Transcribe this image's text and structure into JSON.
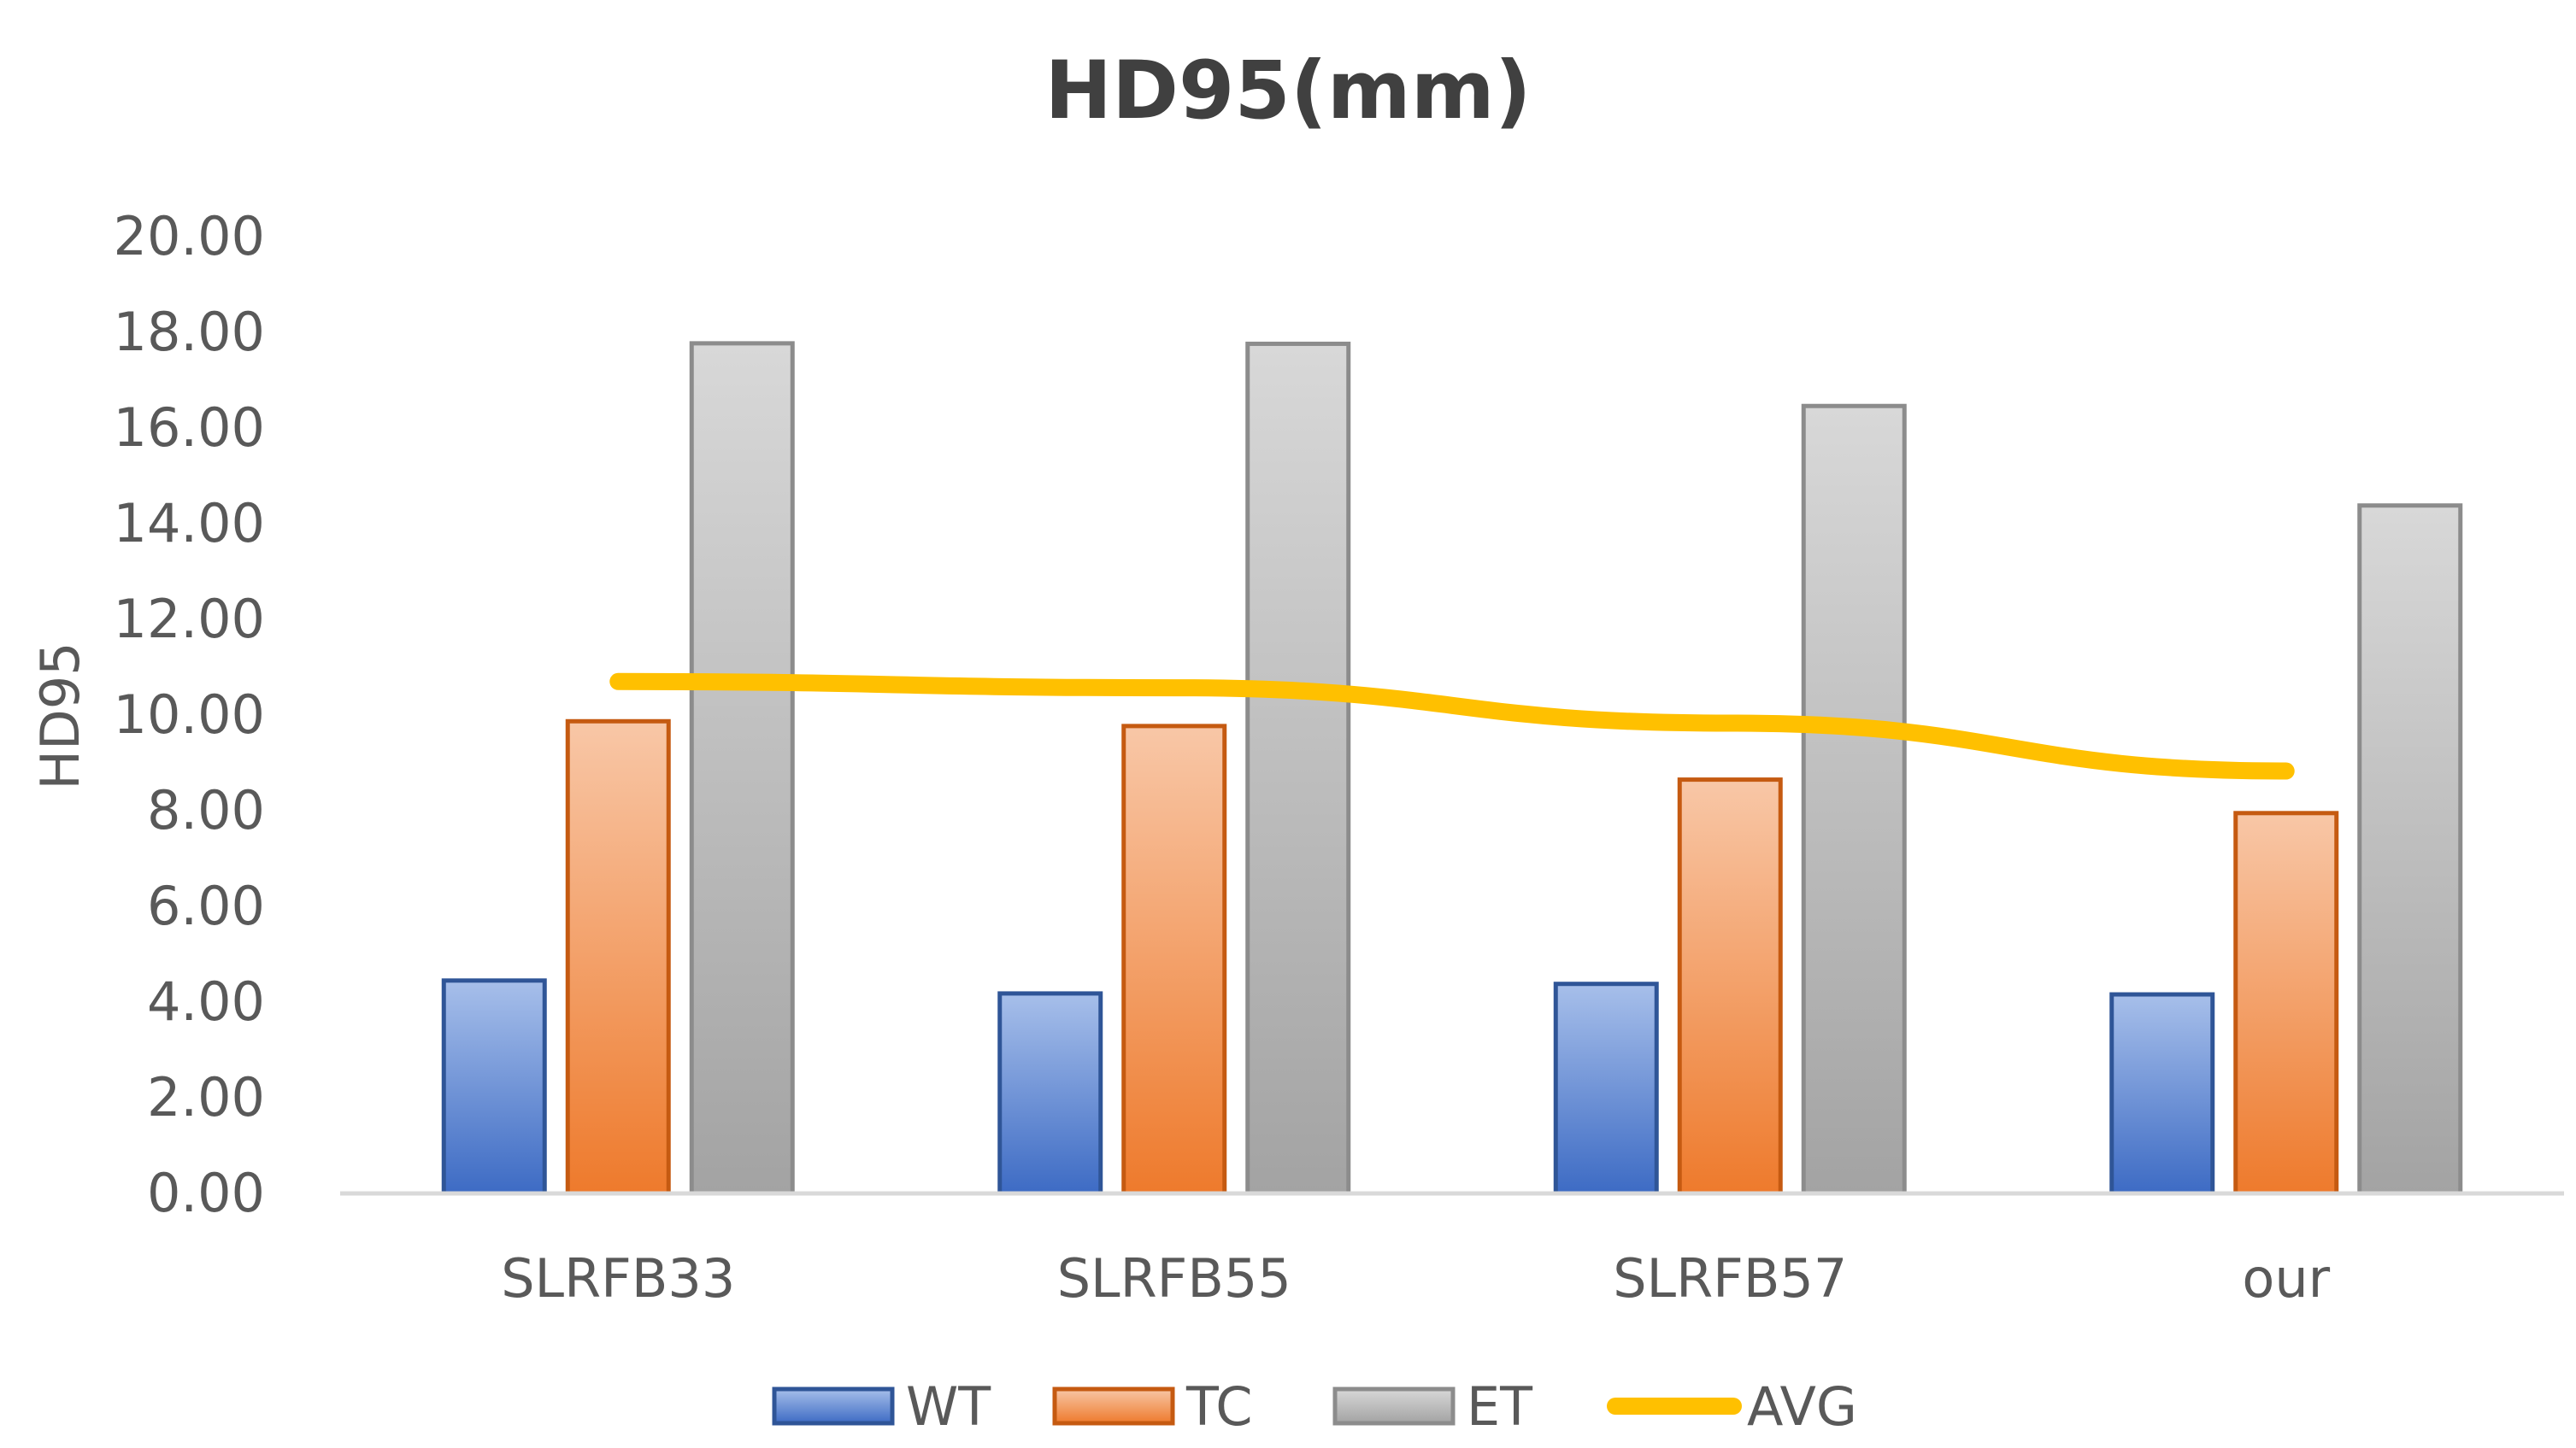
{
  "chart_data": {
    "type": "bar",
    "title": "HD95(mm)",
    "xlabel": "",
    "ylabel": "HD95",
    "ylim": [
      0,
      20
    ],
    "ytick_step": 2,
    "ytick_format_decimals": 2,
    "grid": false,
    "legend_position": "bottom",
    "categories": [
      "SLRFB33",
      "SLRFB55",
      "SLRFB57",
      "our"
    ],
    "series": [
      {
        "name": "WT",
        "kind": "bar",
        "color": "#4472C4",
        "values": [
          4.45,
          4.18,
          4.38,
          4.16
        ]
      },
      {
        "name": "TC",
        "kind": "bar",
        "color": "#ED7D31",
        "values": [
          9.87,
          9.77,
          8.65,
          7.95
        ]
      },
      {
        "name": "ET",
        "kind": "bar",
        "color": "#A5A5A5",
        "values": [
          17.77,
          17.76,
          16.46,
          14.38
        ]
      },
      {
        "name": "AVG",
        "kind": "line",
        "color": "#FFC000",
        "values": [
          10.7,
          10.57,
          9.83,
          8.83
        ]
      }
    ]
  }
}
